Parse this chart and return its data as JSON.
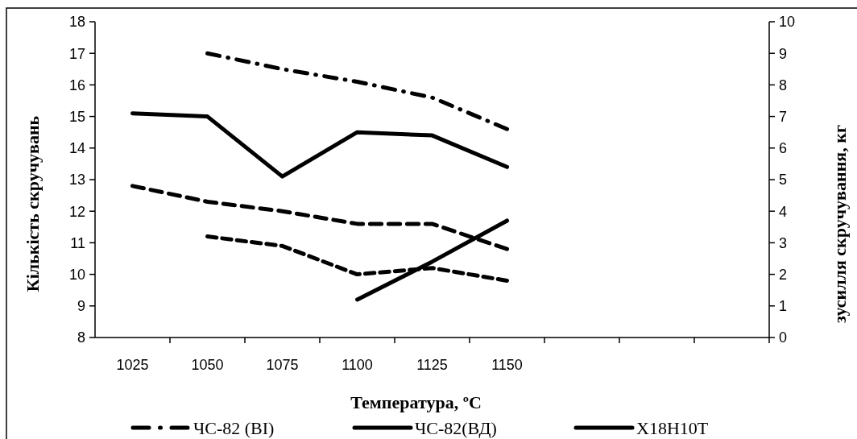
{
  "chart_data": {
    "type": "line",
    "xlabel": "Температура, ºC",
    "ylabel": "Кількість скручувань",
    "y2label": "зусилля скручування, кг",
    "categories": [
      "1025",
      "1050",
      "1075",
      "1100",
      "1125",
      "1150",
      null,
      null,
      null
    ],
    "ylim": [
      8,
      18
    ],
    "yticks": [
      8,
      9,
      10,
      11,
      12,
      13,
      14,
      15,
      16,
      17,
      18
    ],
    "y2lim": [
      0,
      10
    ],
    "y2ticks": [
      0,
      1,
      2,
      3,
      4,
      5,
      6,
      7,
      8,
      9,
      10
    ],
    "legend": "bottom",
    "grid": false,
    "marker": "none",
    "series": [
      {
        "name": "ЧС-82 (ВІ)",
        "color": "#000000",
        "line_style": "dashdot",
        "values": [
          null,
          17.0,
          16.5,
          16.1,
          15.6,
          14.6,
          null,
          null,
          null
        ]
      },
      {
        "name": "ЧС-82(ВД)",
        "color": "#000000",
        "line_style": "solid",
        "values": [
          15.1,
          15.0,
          13.1,
          14.5,
          14.4,
          13.4,
          null,
          null,
          null
        ]
      },
      {
        "name": "X18H10T",
        "color": "#000000",
        "line_style": "solid",
        "values": [
          null,
          null,
          null,
          9.2,
          10.4,
          11.7,
          null,
          null,
          null
        ]
      },
      {
        "color": "#000000",
        "line_style": "dashed",
        "axis": "y2",
        "values": [
          4.8,
          4.3,
          4.0,
          3.6,
          3.6,
          2.8,
          null,
          null,
          null
        ]
      },
      {
        "color": "#000000",
        "line_style": "dashed",
        "axis": "y2",
        "values": [
          null,
          3.2,
          2.9,
          2.0,
          2.2,
          1.8,
          null,
          null,
          null
        ]
      }
    ]
  }
}
